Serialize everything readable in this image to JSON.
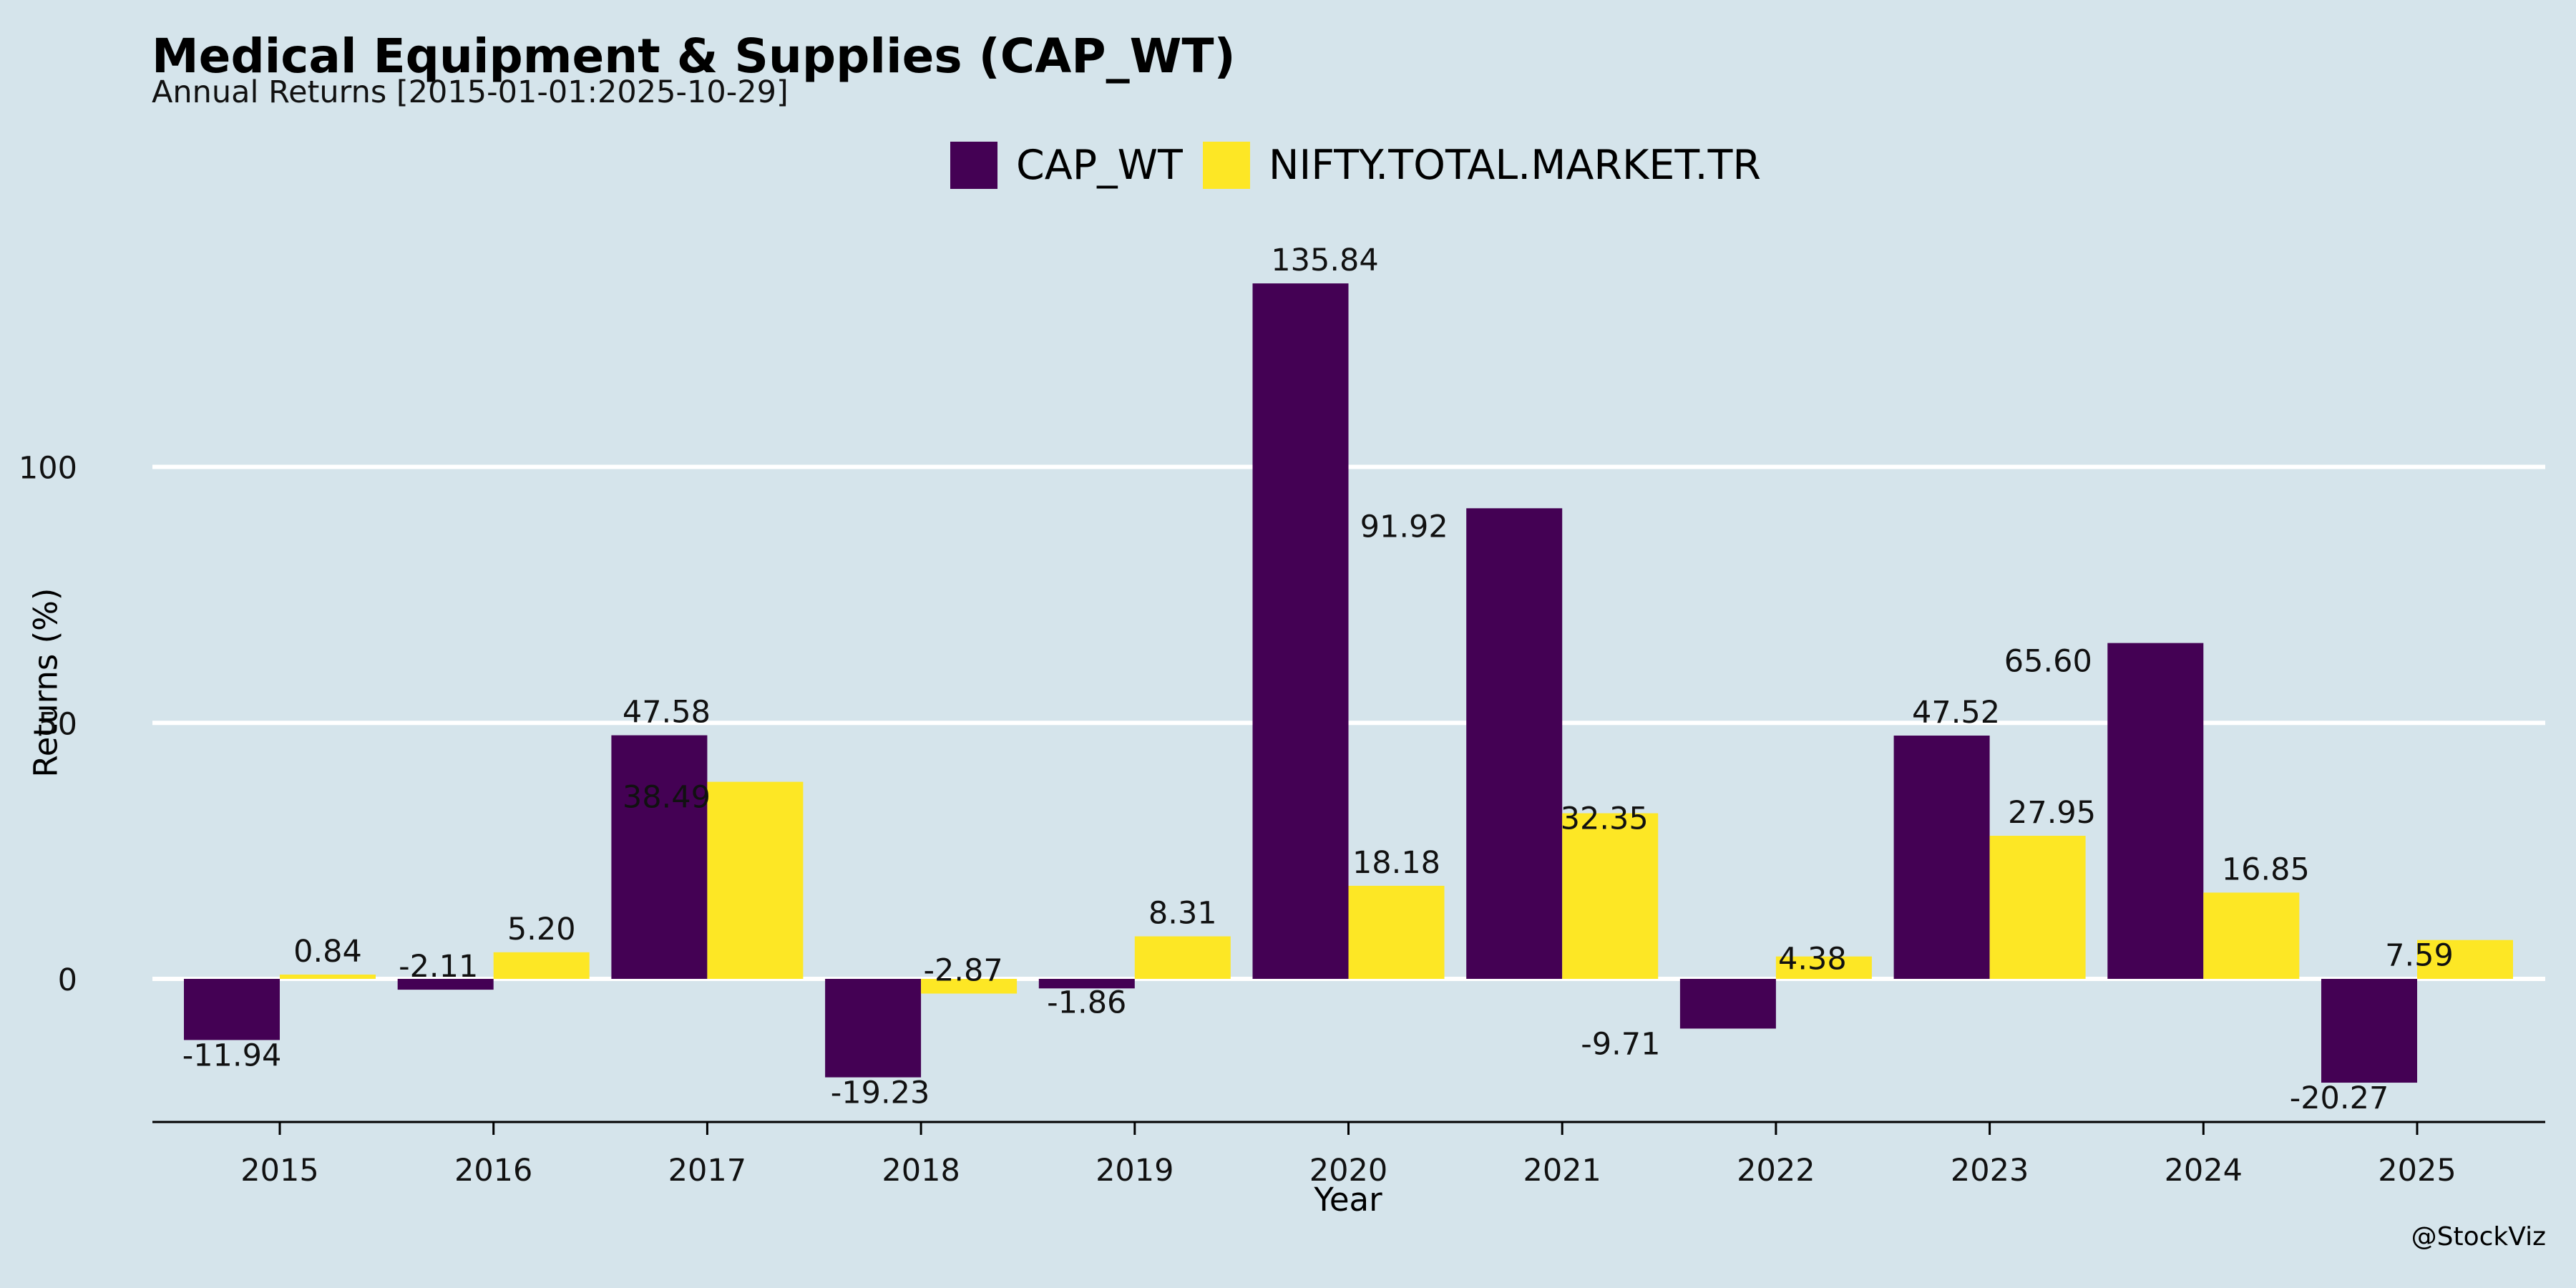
{
  "chart_data": {
    "type": "bar",
    "title": "Medical Equipment & Supplies (CAP_WT)",
    "subtitle": "Annual Returns [2015-01-01:2025-10-29]",
    "xlabel": "Year",
    "ylabel": "Returns (%)",
    "categories": [
      "2015",
      "2016",
      "2017",
      "2018",
      "2019",
      "2020",
      "2021",
      "2022",
      "2023",
      "2024",
      "2025"
    ],
    "series": [
      {
        "name": "CAP_WT",
        "color": "#440154",
        "values": [
          -11.94,
          -2.11,
          47.58,
          -19.23,
          -1.86,
          135.84,
          91.92,
          -9.71,
          47.52,
          65.6,
          -20.27
        ],
        "labels": [
          "-11.94",
          "-2.11",
          "47.58",
          "-19.23",
          "-1.86",
          "135.84",
          "91.92",
          "-9.71",
          "47.52",
          "65.60",
          "-20.27"
        ]
      },
      {
        "name": "NIFTY.TOTAL.MARKET.TR",
        "color": "#fde725",
        "values": [
          0.84,
          5.2,
          38.49,
          -2.87,
          8.31,
          18.18,
          32.35,
          4.38,
          27.95,
          16.85,
          7.59
        ],
        "labels": [
          "0.84",
          "5.20",
          "38.49",
          "-2.87",
          "8.31",
          "18.18",
          "32.35",
          "4.38",
          "27.95",
          "16.85",
          "7.59"
        ]
      }
    ],
    "yticks": [
      "0",
      "50",
      "100"
    ],
    "ylim": [
      -28,
      150
    ],
    "grid": "horizontal",
    "legend_position": "top-center",
    "background": "#d5e4eb"
  },
  "credit": "@StockViz"
}
